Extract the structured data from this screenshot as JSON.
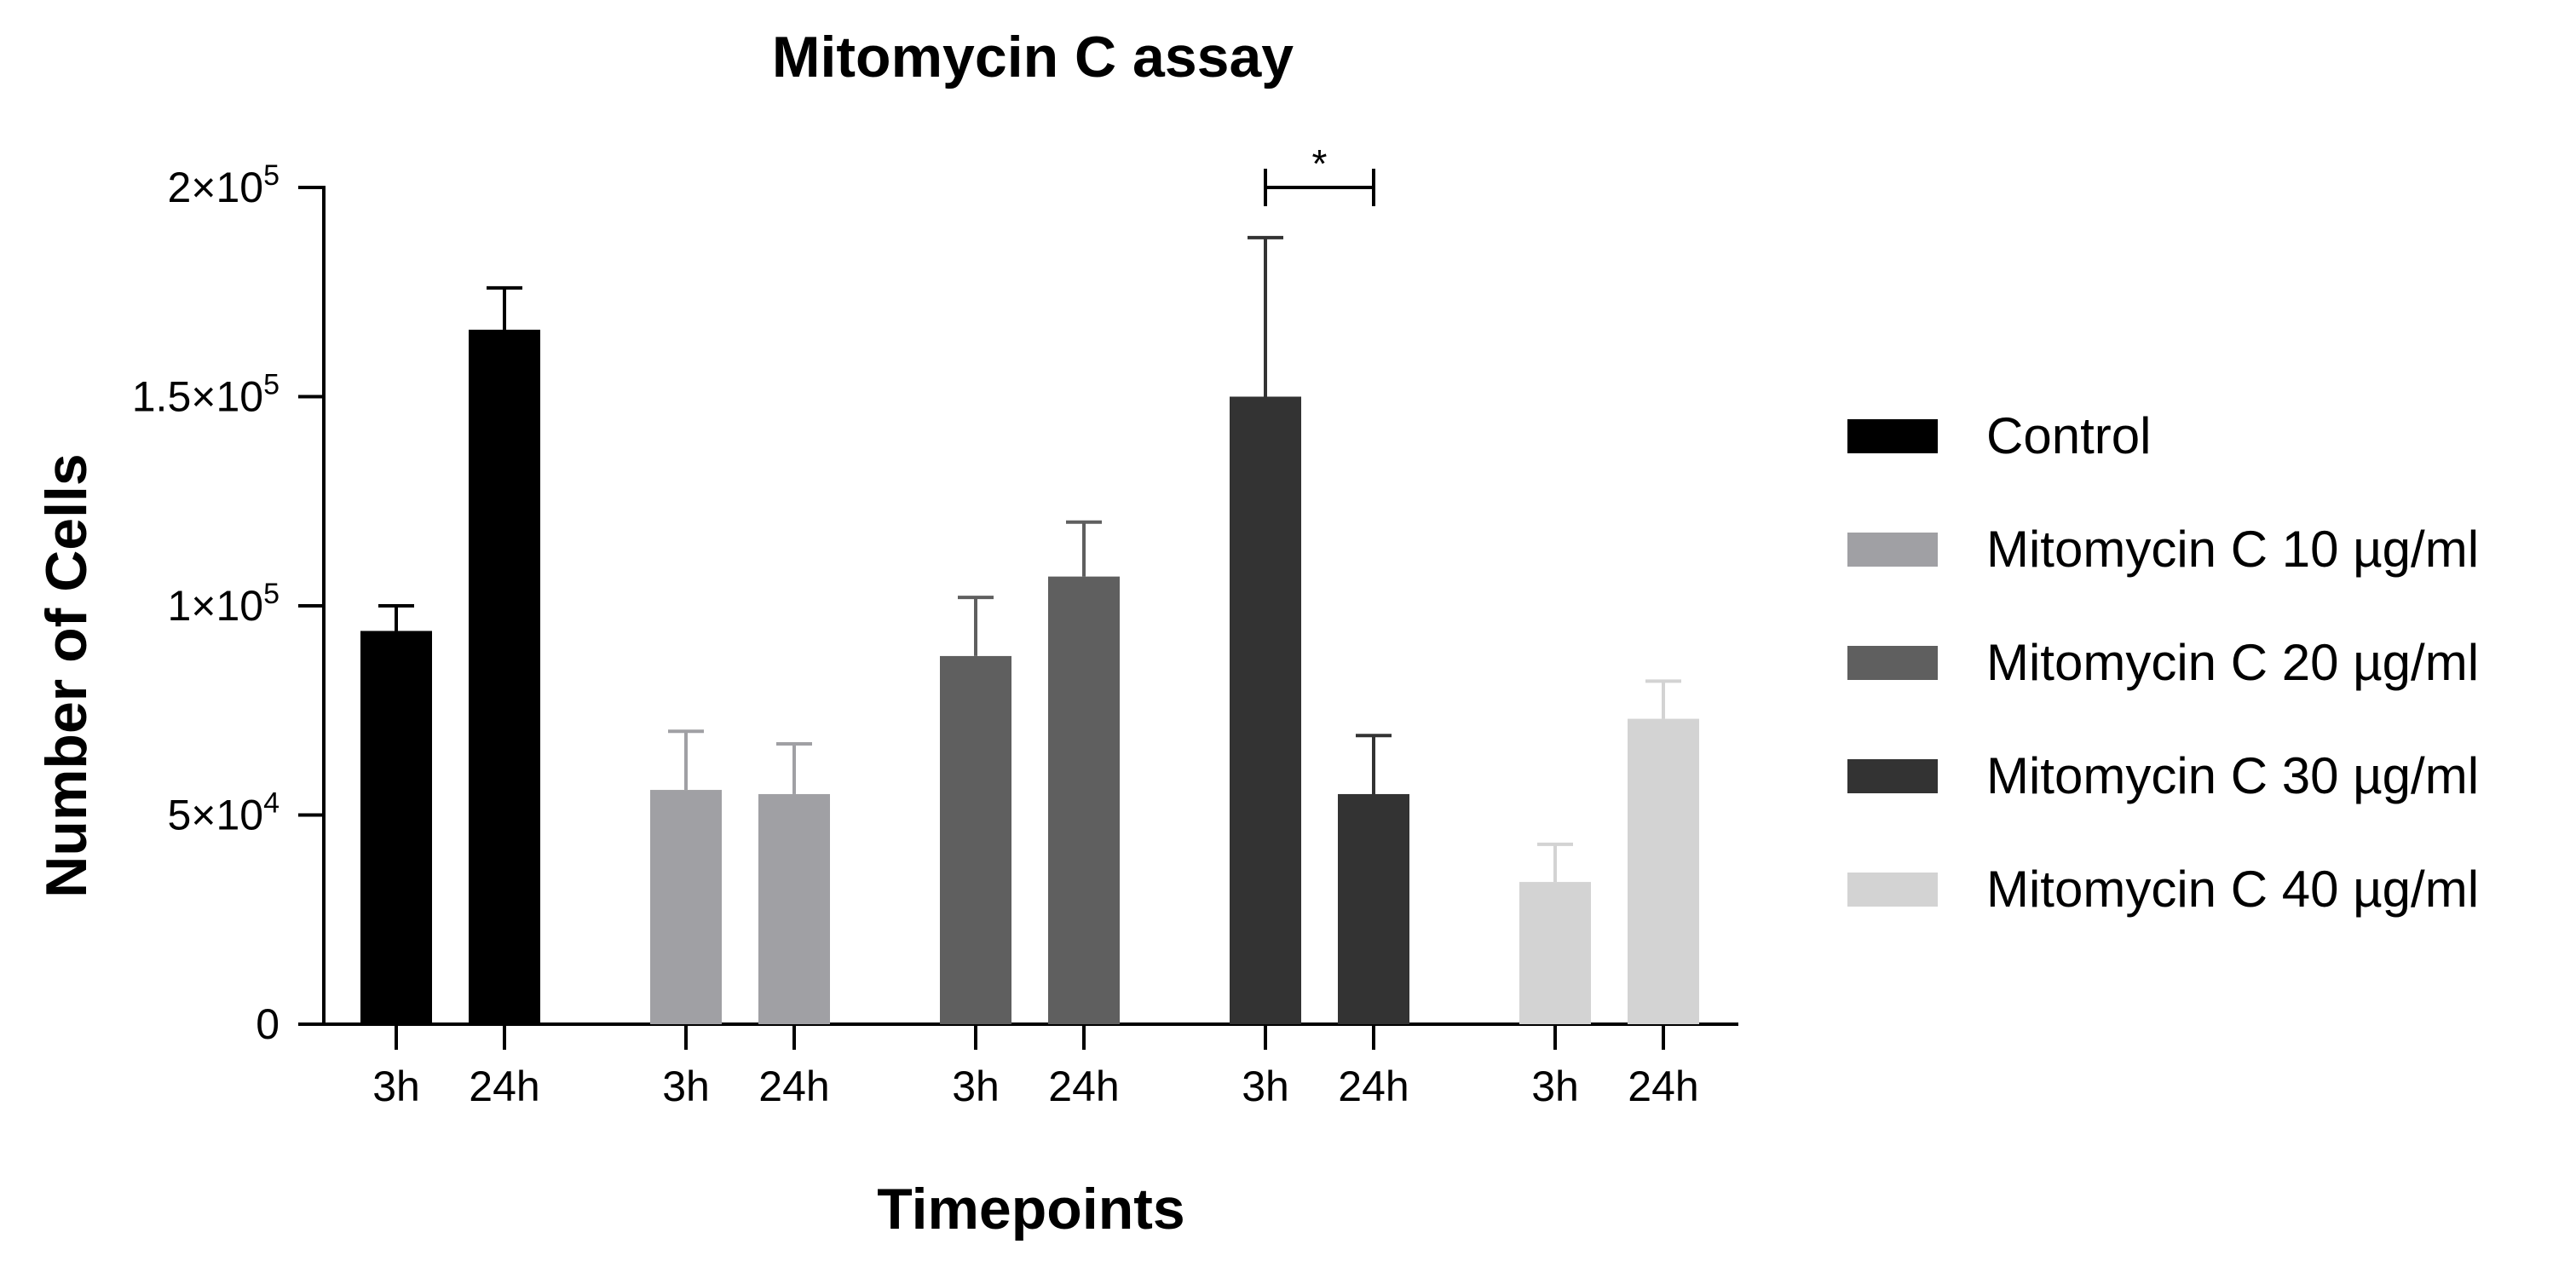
{
  "chart_data": {
    "type": "bar",
    "title": "Mitomycin C assay",
    "xlabel": "Timepoints",
    "ylabel": "Number of Cells",
    "ylim": [
      0,
      200000
    ],
    "grid": false,
    "legend_position": "right",
    "y_ticks": [
      {
        "value": 0,
        "mantissa": "0",
        "exponent": ""
      },
      {
        "value": 50000,
        "mantissa": "5×10",
        "exponent": "4"
      },
      {
        "value": 100000,
        "mantissa": "1×10",
        "exponent": "5"
      },
      {
        "value": 150000,
        "mantissa": "1.5×10",
        "exponent": "5"
      },
      {
        "value": 200000,
        "mantissa": "2×10",
        "exponent": "5"
      }
    ],
    "series": [
      {
        "name": "Control",
        "color": "#000000",
        "bars": [
          {
            "label": "3h",
            "value": 94000,
            "error": 6000
          },
          {
            "label": "24h",
            "value": 166000,
            "error": 10000
          }
        ]
      },
      {
        "name": "Mitomycin C 10 µg/ml",
        "color": "#a0a0a4",
        "bars": [
          {
            "label": "3h",
            "value": 56000,
            "error": 14000
          },
          {
            "label": "24h",
            "value": 55000,
            "error": 12000
          }
        ]
      },
      {
        "name": "Mitomycin C 20 µg/ml",
        "color": "#5f5f5f",
        "bars": [
          {
            "label": "3h",
            "value": 88000,
            "error": 14000
          },
          {
            "label": "24h",
            "value": 107000,
            "error": 13000
          }
        ]
      },
      {
        "name": "Mitomycin C 30 µg/ml",
        "color": "#333333",
        "bars": [
          {
            "label": "3h",
            "value": 150000,
            "error": 38000
          },
          {
            "label": "24h",
            "value": 55000,
            "error": 14000
          }
        ]
      },
      {
        "name": "Mitomycin C 40 µg/ml",
        "color": "#d3d3d3",
        "bars": [
          {
            "label": "3h",
            "value": 34000,
            "error": 9000
          },
          {
            "label": "24h",
            "value": 73000,
            "error": 9000
          }
        ]
      }
    ],
    "annotations": [
      {
        "text": "*",
        "group": 3,
        "from_bar": 0,
        "to_bar": 1,
        "y_value": 200000
      }
    ]
  }
}
